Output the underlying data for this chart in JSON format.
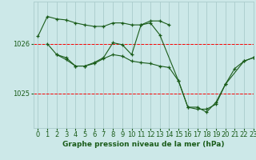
{
  "title": "Graphe pression niveau de la mer (hPa)",
  "bg_color": "#cce8e8",
  "grid_color": "#aacccc",
  "line_color": "#1a5c1a",
  "xlim": [
    -0.5,
    23
  ],
  "ylim": [
    1024.3,
    1026.85
  ],
  "yticks": [
    1025,
    1026
  ],
  "xticks": [
    0,
    1,
    2,
    3,
    4,
    5,
    6,
    7,
    8,
    9,
    10,
    11,
    12,
    13,
    14,
    15,
    16,
    17,
    18,
    19,
    20,
    21,
    22,
    23
  ],
  "red_hlines": [
    1025,
    1026
  ],
  "series": [
    {
      "x": [
        0,
        1,
        2,
        3,
        4,
        5,
        6,
        7,
        8,
        9,
        10,
        11,
        12,
        13,
        14
      ],
      "y": [
        1026.15,
        1026.55,
        1026.5,
        1026.48,
        1026.42,
        1026.38,
        1026.35,
        1026.35,
        1026.42,
        1026.42,
        1026.38,
        1026.38,
        1026.46,
        1026.46,
        1026.38
      ]
    },
    {
      "x": [
        1,
        2,
        3,
        4,
        5,
        6,
        7,
        8,
        9,
        10,
        11,
        12,
        13,
        14,
        15,
        16,
        17,
        18,
        19,
        20,
        21,
        22,
        23
      ],
      "y": [
        1026.0,
        1025.78,
        1025.68,
        1025.55,
        1025.55,
        1025.6,
        1025.7,
        1025.78,
        1025.75,
        1025.65,
        1025.62,
        1025.6,
        1025.55,
        1025.52,
        1025.25,
        1024.72,
        1024.68,
        1024.68,
        1024.78,
        1025.18,
        1025.5,
        1025.65,
        1025.72
      ]
    },
    {
      "x": [
        2,
        3,
        4,
        5,
        6,
        7,
        8,
        9,
        10,
        11,
        12,
        13,
        15,
        16,
        17,
        18,
        19,
        20,
        22,
        23
      ],
      "y": [
        1025.78,
        1025.72,
        1025.55,
        1025.55,
        1025.62,
        1025.72,
        1026.02,
        1025.98,
        1025.78,
        1026.38,
        1026.42,
        1026.18,
        1025.25,
        1024.72,
        1024.72,
        1024.62,
        1024.82,
        1025.18,
        1025.65,
        1025.72
      ]
    }
  ]
}
